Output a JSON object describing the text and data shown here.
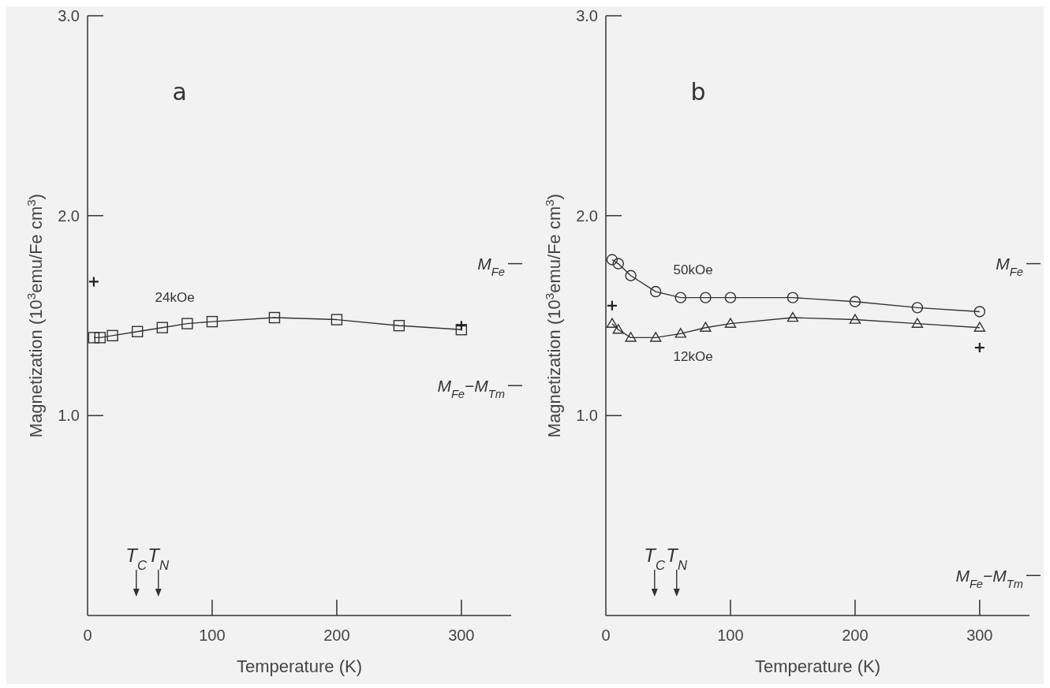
{
  "chart_data": [
    {
      "type": "line",
      "title": "a",
      "xlabel": "Temperature (K)",
      "ylabel": "Magnetization (10$^{3}$emu/Fe cm$^{3}$)",
      "x": [
        5,
        10,
        20,
        40,
        60,
        80,
        100,
        150,
        200,
        250,
        300
      ],
      "xlim": [
        0,
        340
      ],
      "xticks": [
        0,
        100,
        200,
        300
      ],
      "ylim": [
        0,
        3
      ],
      "yticks": [
        {
          "value": 1,
          "label": "1.0"
        },
        {
          "value": 2,
          "label": "2.0"
        },
        {
          "value": 3,
          "label": "3.0"
        }
      ],
      "line_style": "solid",
      "series": [
        {
          "name": "24kOe",
          "color": "#333333",
          "marker": "square",
          "values": [
            1.39,
            1.39,
            1.4,
            1.42,
            1.44,
            1.46,
            1.47,
            1.49,
            1.48,
            1.45,
            1.43
          ]
        },
        {
          "type": "scatter",
          "color": "#222222",
          "marker": "cross",
          "values": [
            1.67,
            null,
            null,
            null,
            null,
            null,
            null,
            null,
            null,
            null,
            1.45
          ]
        }
      ],
      "ref_lines": [
        {
          "axis": "y",
          "value": 1.76,
          "label": "M$_{Fe}$"
        },
        {
          "axis": "y",
          "value": 1.15,
          "label": "M$_{Fe}$−M$_{Tm}$"
        }
      ],
      "annotations": [
        "T$_{C}$",
        "T$_{N}$"
      ]
    },
    {
      "type": "line",
      "title": "b",
      "xlabel": "Temperature (K)",
      "ylabel": "Magnetization (10$^{3}$emu/Fe cm$^{3}$)",
      "x": [
        5,
        10,
        20,
        40,
        60,
        80,
        100,
        150,
        200,
        250,
        300
      ],
      "xlim": [
        0,
        340
      ],
      "xticks": [
        0,
        100,
        200,
        300
      ],
      "ylim": [
        0,
        3
      ],
      "yticks": [
        {
          "value": 1,
          "label": "1.0"
        },
        {
          "value": 2,
          "label": "2.0"
        },
        {
          "value": 3,
          "label": "3.0"
        }
      ],
      "line_style": "solid",
      "series": [
        {
          "name": "50kOe",
          "color": "#333333",
          "marker": "circle",
          "values": [
            1.78,
            1.76,
            1.7,
            1.62,
            1.59,
            1.59,
            1.59,
            1.59,
            1.57,
            1.54,
            1.52
          ]
        },
        {
          "name": "12kOe",
          "color": "#333333",
          "marker": "triangle",
          "values": [
            1.46,
            1.43,
            1.39,
            1.39,
            1.41,
            1.44,
            1.46,
            1.49,
            1.48,
            1.46,
            1.44
          ]
        },
        {
          "type": "scatter",
          "color": "#222222",
          "marker": "cross",
          "values": [
            1.55,
            null,
            null,
            null,
            null,
            null,
            null,
            null,
            null,
            null,
            1.34
          ]
        }
      ],
      "ref_lines": [
        {
          "axis": "y",
          "value": 1.76,
          "label": "M$_{Fe}$"
        },
        {
          "axis": "y",
          "value": 0.2,
          "label": "M$_{Fe}$−M$_{Tm}$"
        }
      ],
      "annotations": [
        "T$_{C}$",
        "T$_{N}$"
      ]
    }
  ]
}
